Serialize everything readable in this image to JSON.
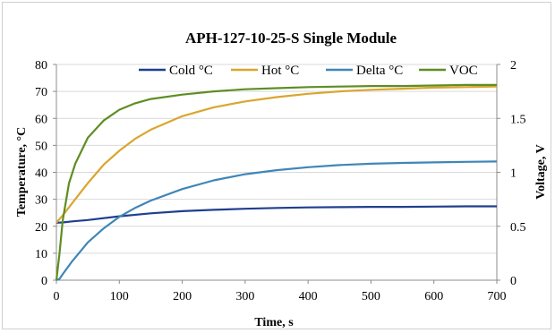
{
  "chart_data": {
    "type": "line",
    "title": "APH-127-10-25-S  Single Module",
    "xlabel": "Time, s",
    "ylabel": "Temperature, °C",
    "y2label": "Voltage,  V",
    "xlim": [
      0,
      700
    ],
    "ylim": [
      0,
      80
    ],
    "y2lim": [
      0,
      2
    ],
    "x_ticks": [
      "0",
      "100",
      "200",
      "300",
      "400",
      "500",
      "600",
      "700"
    ],
    "y_ticks": [
      "0",
      "10",
      "20",
      "30",
      "40",
      "50",
      "60",
      "70",
      "80"
    ],
    "y2_ticks": [
      "0",
      "0.5",
      "1",
      "1.5",
      "2"
    ],
    "grid": "horizontal major gridlines",
    "legend_position": "top",
    "series": [
      {
        "name": "Cold °C",
        "color": "#1f3f8f",
        "axis": "left",
        "x": [
          0,
          10,
          25,
          50,
          100,
          150,
          200,
          250,
          300,
          350,
          400,
          450,
          500,
          550,
          600,
          650,
          700
        ],
        "y": [
          21.3,
          21.4,
          21.8,
          22.3,
          23.7,
          24.8,
          25.6,
          26.1,
          26.5,
          26.8,
          27.0,
          27.1,
          27.2,
          27.2,
          27.3,
          27.4,
          27.4
        ]
      },
      {
        "name": "Hot °C",
        "color": "#d9a62e",
        "axis": "left",
        "x": [
          0,
          10,
          25,
          50,
          75,
          100,
          125,
          150,
          200,
          250,
          300,
          350,
          400,
          450,
          500,
          550,
          600,
          650,
          700
        ],
        "y": [
          21.3,
          24.0,
          28.5,
          36.0,
          42.8,
          48.0,
          52.4,
          55.8,
          60.8,
          64.1,
          66.3,
          67.9,
          69.1,
          70.0,
          70.6,
          71.0,
          71.4,
          71.6,
          71.8
        ]
      },
      {
        "name": "Delta °C",
        "color": "#3f86b7",
        "axis": "left",
        "x": [
          0,
          5,
          10,
          25,
          50,
          75,
          100,
          125,
          150,
          200,
          250,
          300,
          350,
          400,
          450,
          500,
          550,
          600,
          650,
          700
        ],
        "y": [
          0.0,
          0.5,
          2.2,
          7.0,
          14.0,
          19.2,
          23.5,
          26.8,
          29.5,
          33.8,
          37.0,
          39.3,
          40.8,
          41.9,
          42.7,
          43.2,
          43.5,
          43.7,
          43.9,
          44.0
        ]
      },
      {
        "name": "VOC",
        "color": "#5e8e23",
        "axis": "right",
        "x": [
          0,
          5,
          10,
          20,
          30,
          50,
          75,
          100,
          125,
          150,
          200,
          250,
          300,
          350,
          400,
          450,
          500,
          550,
          600,
          650,
          700
        ],
        "y": [
          0.0,
          0.25,
          0.55,
          0.9,
          1.08,
          1.32,
          1.48,
          1.58,
          1.64,
          1.68,
          1.72,
          1.75,
          1.77,
          1.78,
          1.79,
          1.795,
          1.8,
          1.8,
          1.805,
          1.81,
          1.81
        ]
      }
    ]
  }
}
